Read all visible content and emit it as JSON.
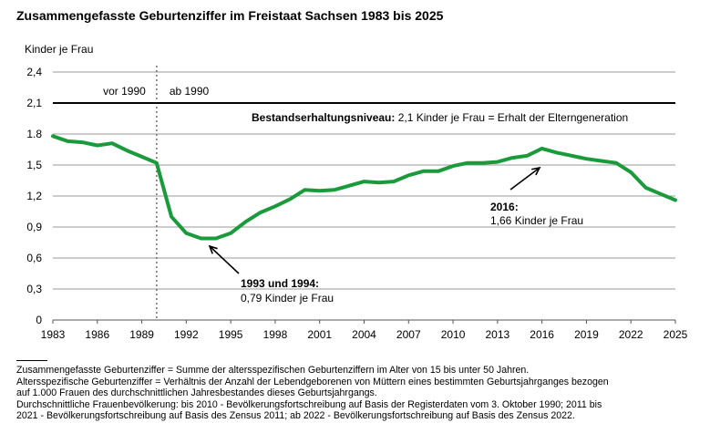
{
  "title": "Zusammengefasste Geburtenziffer im Freistaat Sachsen 1983 bis 2025",
  "chart_data": {
    "type": "line",
    "ylabel": "Kinder je Frau",
    "ylim": [
      0,
      2.4
    ],
    "y_ticks": [
      0,
      0.3,
      0.6,
      0.9,
      1.2,
      1.5,
      1.8,
      2.1,
      2.4
    ],
    "y_tick_labels": [
      "0",
      "0,3",
      "0,6",
      "0,9",
      "1,2",
      "1,5",
      "1.8",
      "2,1",
      "2,4"
    ],
    "x_ticks": [
      1983,
      1986,
      1989,
      1992,
      1995,
      1998,
      2001,
      2004,
      2007,
      2010,
      2013,
      2016,
      2019,
      2022,
      2025
    ],
    "xlim": [
      1983,
      2025
    ],
    "grid": true,
    "series": [
      {
        "color": "#1a9a3a",
        "x": [
          1983,
          1984,
          1985,
          1986,
          1987,
          1988,
          1989,
          1990,
          1991,
          1992,
          1993,
          1994,
          1995,
          1996,
          1997,
          1998,
          1999,
          2000,
          2001,
          2002,
          2003,
          2004,
          2005,
          2006,
          2007,
          2008,
          2009,
          2010,
          2011,
          2012,
          2013,
          2014,
          2015,
          2016,
          2017,
          2018,
          2019,
          2020,
          2021,
          2022,
          2023,
          2024,
          2025
        ],
        "values": [
          1.78,
          1.73,
          1.72,
          1.69,
          1.71,
          1.64,
          1.58,
          1.52,
          1.0,
          0.84,
          0.79,
          0.79,
          0.84,
          0.95,
          1.04,
          1.1,
          1.17,
          1.26,
          1.25,
          1.26,
          1.3,
          1.34,
          1.33,
          1.34,
          1.4,
          1.44,
          1.44,
          1.49,
          1.52,
          1.52,
          1.53,
          1.57,
          1.59,
          1.66,
          1.62,
          1.59,
          1.56,
          1.54,
          1.52,
          1.43,
          1.28,
          1.22,
          1.16
        ]
      }
    ],
    "reference_line": {
      "value": 2.1,
      "label_bold": "Bestandserhaltungsniveau:",
      "label_rest": "2,1 Kinder je Frau = Erhalt der Elterngeneration"
    },
    "divider": {
      "x": 1990,
      "left_label": "vor 1990",
      "right_label": "ab 1990"
    },
    "annotations": [
      {
        "bold": "1993 und 1994:",
        "text": "0,79 Kinder je Frau"
      },
      {
        "bold": "2016:",
        "text": "1,66 Kinder je Frau"
      }
    ]
  },
  "footnotes": [
    "Zusammengefasste Geburtenziffer = Summe der altersspezifischen Geburtenziffern im Alter von 15 bis unter 50 Jahren.",
    "Altersspezifische Geburtenziffer = Verhältnis der Anzahl der Lebendgeborenen von Müttern eines bestimmten Geburtsjahrganges bezogen",
    "auf 1.000 Frauen des durchschnittlichen Jahresbestandes dieses Geburtsjahrgangs.",
    "Durchschnittliche Frauenbevölkerung: bis 2010 - Bevölkerungsfortschreibung auf Basis der Registerdaten vom 3. Oktober 1990; 2011 bis",
    "2021 - Bevölkerungsfortschreibung auf Basis des Zensus 2011; ab 2022 - Bevölkerungsfortschreibung auf Basis des Zensus 2022."
  ]
}
